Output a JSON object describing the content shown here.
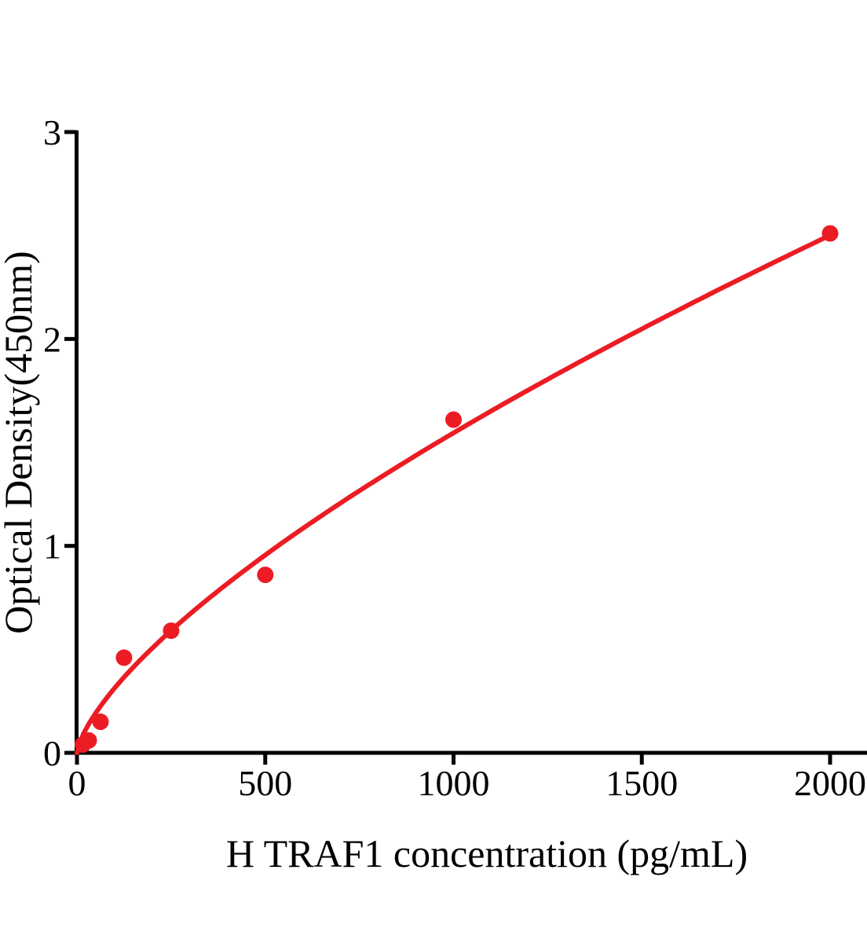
{
  "chart_data": {
    "type": "scatter",
    "title": "",
    "xlabel": "H TRAF1 concentration (pg/mL)",
    "ylabel": "Optical Density(450nm)",
    "x": [
      15.6,
      31.2,
      62.5,
      125,
      250,
      500,
      1000,
      2000
    ],
    "y": [
      0.04,
      0.06,
      0.15,
      0.46,
      0.59,
      0.86,
      1.61,
      2.51
    ],
    "x_ticks": [
      0,
      500,
      1000,
      1500,
      2000
    ],
    "x_tick_labels": [
      "0",
      "500",
      "1000",
      "1500",
      "2000"
    ],
    "y_ticks": [
      0,
      1,
      2,
      3
    ],
    "y_tick_labels": [
      "0",
      "1",
      "2",
      "3"
    ],
    "xlim": [
      0,
      2100
    ],
    "ylim": [
      0,
      3
    ],
    "grid": false,
    "legend": "none",
    "curve_fit": {
      "model": "power",
      "a": 0.0128,
      "b": 0.694,
      "x_start": 0,
      "x_end": 2000
    },
    "marker": {
      "shape": "circle",
      "radius_px": 10.5
    },
    "colors": {
      "series": "#ec1c24",
      "axis": "#000000",
      "background": "#ffffff"
    }
  }
}
